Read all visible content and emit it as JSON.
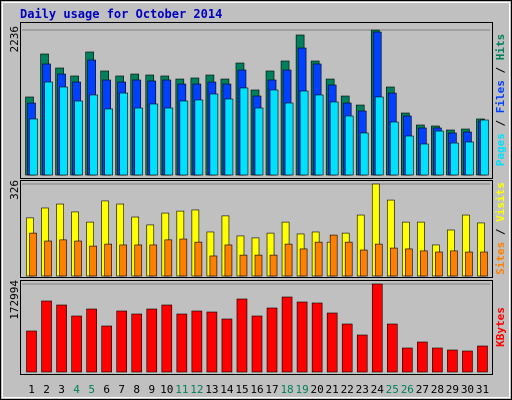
{
  "title": "Daily usage for October 2014",
  "legend_separator": " / ",
  "chart_data": [
    {
      "type": "bar",
      "ylim": [
        0,
        2236
      ],
      "yticks": [
        2236
      ],
      "series": [
        {
          "name": "Hits",
          "color": "#00805c",
          "values": [
            1203,
            1866,
            1650,
            1527,
            1897,
            1604,
            1527,
            1557,
            1542,
            1527,
            1480,
            1496,
            1542,
            1480,
            1727,
            1311,
            1604,
            1758,
            2159,
            1758,
            1480,
            1218,
            1079,
            2236,
            1357,
            956,
            771,
            756,
            694,
            709,
            864
          ]
        },
        {
          "name": "Files",
          "color": "#0040ff",
          "values": [
            1110,
            1712,
            1557,
            1434,
            1773,
            1465,
            1434,
            1465,
            1450,
            1465,
            1403,
            1403,
            1434,
            1403,
            1619,
            1218,
            1465,
            1619,
            1958,
            1712,
            1388,
            1110,
            987,
            2205,
            1264,
            910,
            725,
            725,
            648,
            663,
            833
          ]
        },
        {
          "name": "Pages",
          "color": "#00e0ff",
          "values": [
            864,
            1434,
            1357,
            1141,
            1234,
            1018,
            1264,
            1033,
            1095,
            1033,
            1141,
            1157,
            1249,
            1172,
            1342,
            1033,
            1311,
            1110,
            1295,
            1234,
            1126,
            910,
            648,
            1203,
            817,
            601,
            478,
            678,
            493,
            509,
            848
          ]
        }
      ]
    },
    {
      "type": "bar",
      "ylim": [
        0,
        326
      ],
      "yticks": [
        326
      ],
      "series": [
        {
          "name": "Visits",
          "color": "#ffff00",
          "values": [
            206,
            241,
            255,
            227,
            191,
            266,
            255,
            209,
            181,
            223,
            230,
            234,
            156,
            213,
            142,
            135,
            152,
            191,
            149,
            156,
            120,
            152,
            216,
            326,
            269,
            191,
            191,
            110,
            163,
            216,
            188
          ]
        },
        {
          "name": "Sites",
          "color": "#ff8000",
          "values": [
            152,
            124,
            128,
            124,
            106,
            113,
            110,
            110,
            110,
            128,
            131,
            120,
            71,
            110,
            74,
            74,
            74,
            113,
            96,
            120,
            145,
            120,
            92,
            113,
            99,
            96,
            89,
            85,
            89,
            85,
            85
          ]
        }
      ]
    },
    {
      "type": "bar",
      "ylim": [
        0,
        172994
      ],
      "yticks": [
        172994
      ],
      "series": [
        {
          "name": "KBytes",
          "color": "#ff0000",
          "values": [
            80598,
            139572,
            131709,
            110085,
            123845,
            90427,
            119914,
            114016,
            123845,
            131709,
            114016,
            119914,
            117948,
            104187,
            143503,
            110085,
            125811,
            147435,
            137606,
            135640,
            115982,
            94358,
            72735,
            172994,
            94358,
            47179,
            58974,
            47179,
            43248,
            41282,
            51111
          ]
        }
      ],
      "categories": [
        "1",
        "2",
        "3",
        "4",
        "5",
        "6",
        "7",
        "8",
        "9",
        "10",
        "11",
        "12",
        "13",
        "14",
        "15",
        "16",
        "17",
        "18",
        "19",
        "20",
        "21",
        "22",
        "23",
        "24",
        "25",
        "26",
        "27",
        "28",
        "29",
        "30",
        "31"
      ],
      "category_colors": [
        "#000000",
        "#000000",
        "#000000",
        "#00805c",
        "#00805c",
        "#000000",
        "#000000",
        "#000000",
        "#000000",
        "#000000",
        "#00805c",
        "#00805c",
        "#000000",
        "#000000",
        "#000000",
        "#000000",
        "#000000",
        "#00805c",
        "#00805c",
        "#000000",
        "#000000",
        "#000000",
        "#000000",
        "#000000",
        "#00805c",
        "#00805c",
        "#000000",
        "#000000",
        "#000000",
        "#000000",
        "#000000"
      ]
    }
  ]
}
